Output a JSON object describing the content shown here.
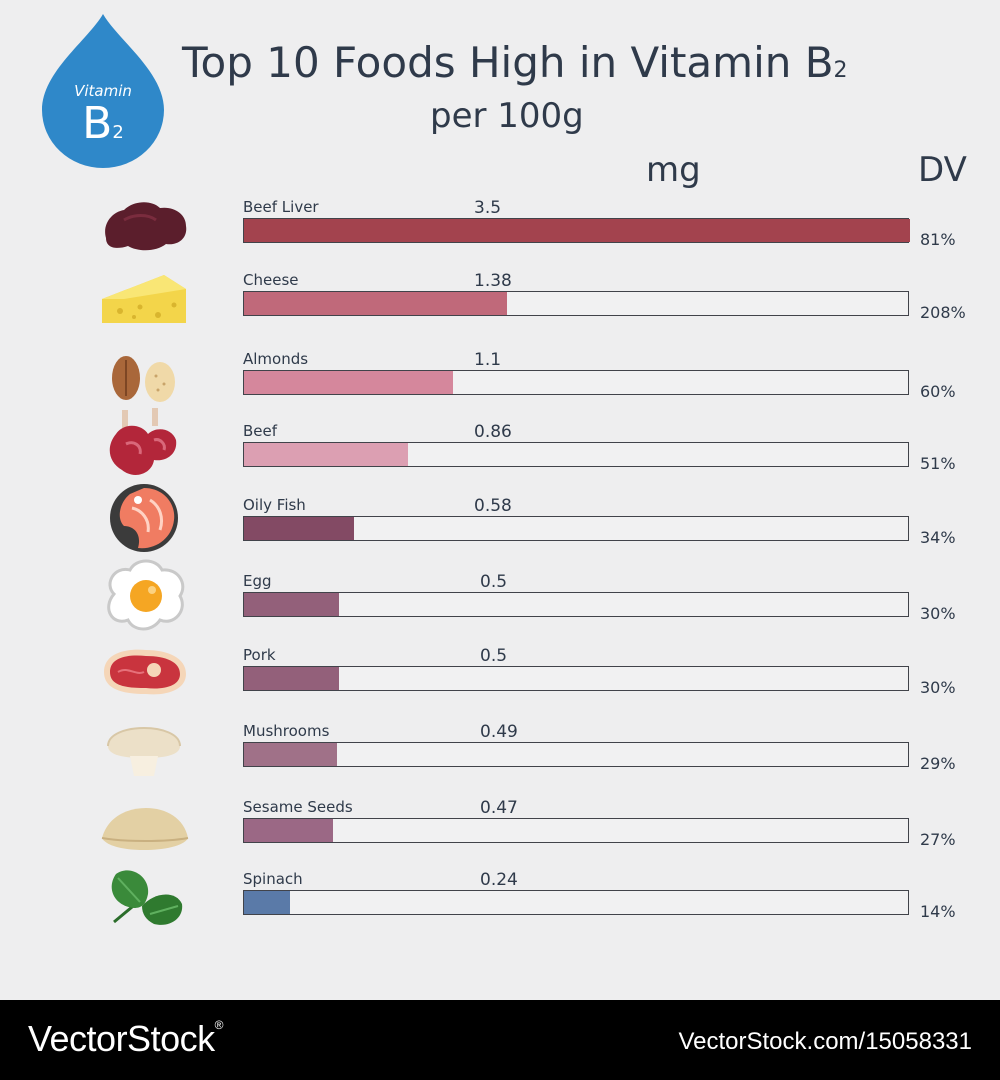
{
  "header": {
    "badge_title": "Vitamin",
    "badge_letter": "B",
    "badge_sub": "2",
    "title": "Top 10 Foods High in Vitamin B",
    "title_sub": "2",
    "subtitle": "per 100g",
    "unit_mg": "mg",
    "unit_dv": "DV"
  },
  "colors": {
    "badge": "#2f88c9",
    "track": "#f1f1f2",
    "track_border": "#41434a"
  },
  "chart_data": {
    "type": "bar",
    "orientation": "horizontal",
    "title": "Top 10 Foods High in Vitamin B2",
    "subtitle": "per 100g",
    "xlabel": "mg",
    "value_scale_max": 3.5,
    "rows": [
      {
        "name": "Beef Liver",
        "mg": 3.5,
        "mg_label": "3.5",
        "dv": "81%",
        "color": "#a3434e",
        "icon": "beef-liver-icon"
      },
      {
        "name": "Cheese",
        "mg": 1.38,
        "mg_label": "1.38",
        "dv": "208%",
        "color": "#c0697a",
        "icon": "cheese-icon"
      },
      {
        "name": "Almonds",
        "mg": 1.1,
        "mg_label": "1.1",
        "dv": "60%",
        "color": "#d5879c",
        "icon": "almonds-icon"
      },
      {
        "name": "Beef",
        "mg": 0.86,
        "mg_label": "0.86",
        "dv": "51%",
        "color": "#dc9fb2",
        "icon": "beef-icon"
      },
      {
        "name": "Oily Fish",
        "mg": 0.58,
        "mg_label": "0.58",
        "dv": "34%",
        "color": "#834a64",
        "icon": "oily-fish-icon"
      },
      {
        "name": "Egg",
        "mg": 0.5,
        "mg_label": "0.5",
        "dv": "30%",
        "color": "#93607a",
        "icon": "egg-icon"
      },
      {
        "name": "Pork",
        "mg": 0.5,
        "mg_label": "0.5",
        "dv": "30%",
        "color": "#93607a",
        "icon": "pork-icon"
      },
      {
        "name": "Mushrooms",
        "mg": 0.49,
        "mg_label": "0.49",
        "dv": "29%",
        "color": "#a07188",
        "icon": "mushroom-icon"
      },
      {
        "name": "Sesame Seeds",
        "mg": 0.47,
        "mg_label": "0.47",
        "dv": "27%",
        "color": "#9b6885",
        "icon": "sesame-seeds-icon"
      },
      {
        "name": "Spinach",
        "mg": 0.24,
        "mg_label": "0.24",
        "dv": "14%",
        "color": "#5a7aa8",
        "icon": "spinach-icon"
      }
    ]
  },
  "footer": {
    "brand": "VectorStock",
    "registered": "®",
    "url": "VectorStock.com/15058331"
  }
}
